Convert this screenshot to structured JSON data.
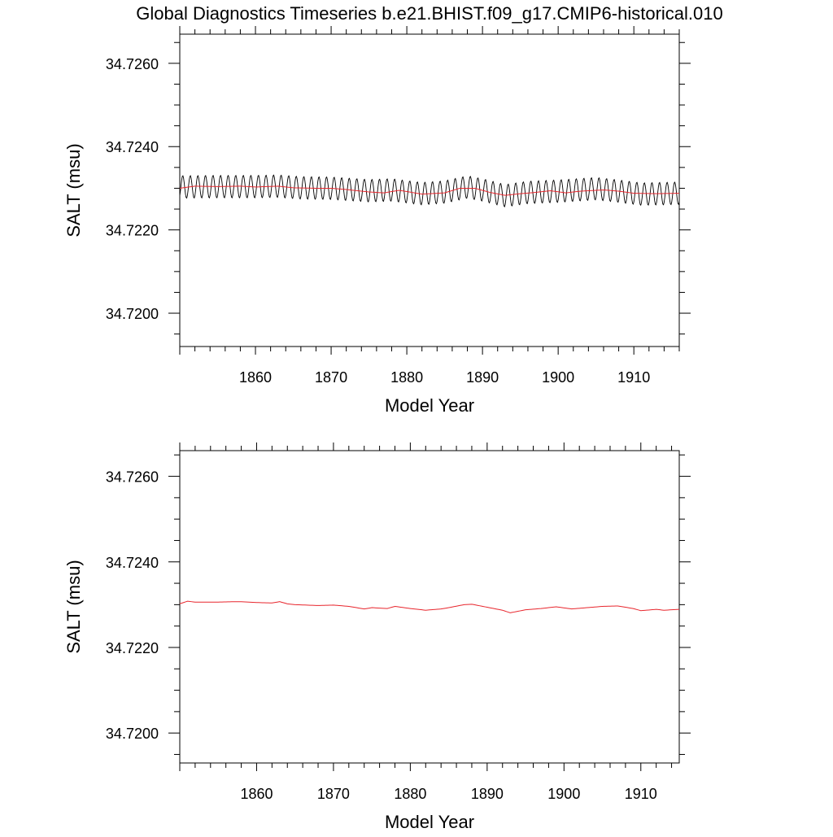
{
  "title": "Global Diagnostics Timeseries b.e21.BHIST.f09_g17.CMIP6-historical.010",
  "colors": {
    "monthly": "#000000",
    "annual": "#e8262d",
    "axis": "#000000"
  },
  "chart_data": [
    {
      "type": "line",
      "ylabel": "SALT (msu)",
      "xlabel": "Model Year",
      "xlim": [
        1850,
        1916
      ],
      "ylim": [
        34.7192,
        34.7267
      ],
      "xticks_major": [
        1860,
        1870,
        1880,
        1890,
        1900,
        1910
      ],
      "xtick_labels": [
        "1860",
        "1870",
        "1880",
        "1890",
        "1900",
        "1910"
      ],
      "yticks_major": [
        34.72,
        34.722,
        34.724,
        34.726
      ],
      "ytick_labels": [
        "34.7200",
        "34.7220",
        "34.7240",
        "34.7260"
      ],
      "grid": false,
      "series": [
        {
          "style": "monthly",
          "x_start": 1850.0,
          "x_end": 1916.0,
          "annual_cycle_amplitude": 0.00027,
          "baseline_x": [
            1850,
            1855,
            1860,
            1863,
            1866,
            1870,
            1875,
            1878,
            1882,
            1885,
            1888,
            1890,
            1893,
            1896,
            1900,
            1905,
            1908,
            1911,
            1916
          ],
          "baseline_y": [
            34.72303,
            34.72304,
            34.72304,
            34.72305,
            34.72301,
            34.723,
            34.72294,
            34.72296,
            34.72287,
            34.72291,
            34.72303,
            34.72296,
            34.72282,
            34.7229,
            34.72293,
            34.72299,
            34.72293,
            34.72286,
            34.72288
          ]
        },
        {
          "style": "annual",
          "x": [
            1850,
            1852,
            1855,
            1858,
            1860,
            1863,
            1865,
            1868,
            1870,
            1872,
            1875,
            1877,
            1879,
            1882,
            1885,
            1887,
            1889,
            1891,
            1893,
            1895,
            1897,
            1899,
            1901,
            1903,
            1906,
            1908,
            1910,
            1913,
            1916
          ],
          "y": [
            34.723,
            34.72305,
            34.72304,
            34.72305,
            34.72303,
            34.72305,
            34.72301,
            34.723,
            34.723,
            34.72297,
            34.72291,
            34.72289,
            34.72295,
            34.72286,
            34.72289,
            34.723,
            34.723,
            34.7229,
            34.72283,
            34.72287,
            34.7229,
            34.72294,
            34.72289,
            34.72293,
            34.72296,
            34.72293,
            34.72288,
            34.72287,
            34.72288
          ]
        }
      ]
    },
    {
      "type": "line",
      "ylabel": "SALT (msu)",
      "xlabel": "Model Year",
      "xlim": [
        1850,
        1915
      ],
      "ylim": [
        34.7193,
        34.7266
      ],
      "xticks_major": [
        1860,
        1870,
        1880,
        1890,
        1900,
        1910
      ],
      "xtick_labels": [
        "1860",
        "1870",
        "1880",
        "1890",
        "1900",
        "1910"
      ],
      "yticks_major": [
        34.72,
        34.722,
        34.724,
        34.726
      ],
      "ytick_labels": [
        "34.7200",
        "34.7220",
        "34.7240",
        "34.7260"
      ],
      "grid": false,
      "series": [
        {
          "style": "annual",
          "x": [
            1850,
            1851,
            1852,
            1855,
            1857,
            1858,
            1860,
            1862,
            1863,
            1864,
            1865,
            1868,
            1870,
            1872,
            1874,
            1875,
            1877,
            1878,
            1880,
            1882,
            1884,
            1885,
            1887,
            1888,
            1890,
            1892,
            1893,
            1895,
            1897,
            1899,
            1901,
            1903,
            1905,
            1907,
            1909,
            1910,
            1912,
            1913,
            1915
          ],
          "y": [
            34.72302,
            34.72308,
            34.72306,
            34.72306,
            34.72307,
            34.72307,
            34.72305,
            34.72304,
            34.72307,
            34.72302,
            34.723,
            34.72298,
            34.72299,
            34.72296,
            34.7229,
            34.72293,
            34.72291,
            34.72296,
            34.72291,
            34.72287,
            34.7229,
            34.72293,
            34.723,
            34.72301,
            34.72294,
            34.72287,
            34.72281,
            34.72288,
            34.72291,
            34.72295,
            34.7229,
            34.72293,
            34.72296,
            34.72297,
            34.72291,
            34.72286,
            34.72289,
            34.72287,
            34.72289
          ]
        }
      ]
    }
  ]
}
